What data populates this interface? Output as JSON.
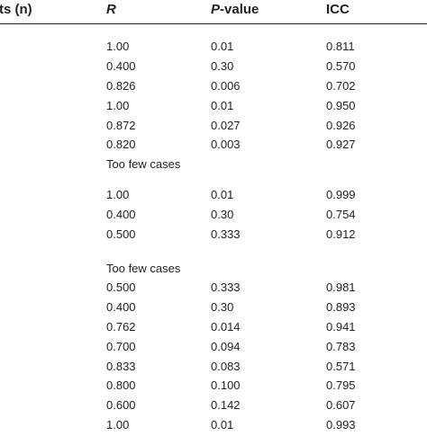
{
  "header": {
    "col0": "ts (n)",
    "col1": "R",
    "col2_italic": "P",
    "col2_rest": "-value",
    "col3": "ICC"
  },
  "rows": [
    {
      "r": "1.00",
      "p": "0.01",
      "icc": "0.811"
    },
    {
      "r": "0.400",
      "p": "0.30",
      "icc": "0.570"
    },
    {
      "r": "0.826",
      "p": "0.006",
      "icc": "0.702"
    },
    {
      "r": "1.00",
      "p": "0.01",
      "icc": "0.950"
    },
    {
      "r": "0.872",
      "p": "0.027",
      "icc": "0.926"
    },
    {
      "r": "0.820",
      "p": "0.003",
      "icc": "0.927"
    },
    {
      "note": "Too few cases"
    },
    {
      "r": "1.00",
      "p": "0.01",
      "icc": "0.999"
    },
    {
      "r": "0.400",
      "p": "0.30",
      "icc": "0.754"
    },
    {
      "r": "0.500",
      "p": "0.333",
      "icc": "0.912"
    },
    {
      "note": "Too few cases"
    },
    {
      "r": "0.500",
      "p": "0.333",
      "icc": "0.981"
    },
    {
      "r": "0.400",
      "p": "0.30",
      "icc": "0.893"
    },
    {
      "r": "0.762",
      "p": "0.014",
      "icc": "0.941"
    },
    {
      "r": "0.700",
      "p": "0.094",
      "icc": "0.783"
    },
    {
      "r": "0.833",
      "p": "0.083",
      "icc": "0.571"
    },
    {
      "r": "0.800",
      "p": "0.100",
      "icc": "0.795"
    },
    {
      "r": "0.600",
      "p": "0.142",
      "icc": "0.607"
    },
    {
      "r": "1.00",
      "p": "0.01",
      "icc": "0.993"
    }
  ]
}
